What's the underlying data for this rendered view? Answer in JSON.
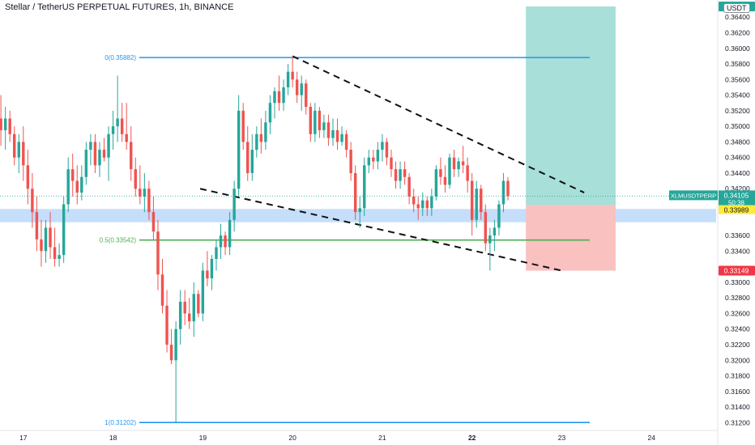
{
  "header": {
    "title": "Stellar / TetherUS PERPETUAL FUTURES, 1h, BINANCE",
    "currency_badge": "USDT"
  },
  "price_axis": {
    "ticks": [
      "0.36400",
      "0.36200",
      "0.36000",
      "0.35800",
      "0.35600",
      "0.35400",
      "0.35200",
      "0.35000",
      "0.34800",
      "0.34600",
      "0.34400",
      "0.34200",
      "0.33600",
      "0.33400",
      "0.33000",
      "0.32800",
      "0.32600",
      "0.32400",
      "0.32200",
      "0.32000",
      "0.31800",
      "0.31600",
      "0.31400",
      "0.31200"
    ]
  },
  "time_axis": {
    "ticks": [
      "17",
      "18",
      "19",
      "20",
      "21",
      "22",
      "23",
      "24"
    ]
  },
  "price_labels": {
    "symbol": "XLMUSDTPERP",
    "last_price": "0.34105",
    "countdown": "50:38",
    "target": "0.36537",
    "entry": "0.33989",
    "stop": "0.33149"
  },
  "fib_levels": [
    {
      "label": "0(0.35882)",
      "price": 0.35882,
      "color": "#2196f3"
    },
    {
      "label": "0.5(0.33542)",
      "price": 0.33542,
      "color": "#4caf50"
    },
    {
      "label": "1(0.31202)",
      "price": 0.31202,
      "color": "#2196f3"
    }
  ],
  "colors": {
    "up": "#26a69a",
    "down": "#ef5350",
    "profit_zone": "#a8dfd8",
    "loss_zone": "#f9c1c0",
    "support_band": "#c4defb",
    "symbol_label_bg": "#26a69a",
    "entry_label_bg": "#ffeb3b",
    "stop_label_bg": "#f23645"
  },
  "chart_data": {
    "type": "candlestick",
    "x_axis": {
      "unit": "day",
      "range": [
        16.74,
        24.72
      ],
      "ticks": [
        17,
        18,
        19,
        20,
        21,
        22,
        23,
        24
      ]
    },
    "y_axis": {
      "range": [
        0.311,
        0.3662
      ],
      "scale": "linear"
    },
    "trend_lines": [
      {
        "points": [
          [
            20.0,
            0.359
          ],
          [
            23.25,
            0.3415
          ]
        ],
        "style": "dashed"
      },
      {
        "points": [
          [
            18.97,
            0.342
          ],
          [
            23.0,
            0.33149
          ]
        ],
        "style": "dashed"
      }
    ],
    "position": {
      "type": "long",
      "x_range": [
        22.6,
        23.6
      ],
      "target": 0.36537,
      "entry": 0.33989,
      "stop": 0.33149
    },
    "support_zone": {
      "low": 0.3377,
      "high": 0.3394
    },
    "candles": [
      {
        "t": 16.75,
        "o": 0.351,
        "h": 0.354,
        "l": 0.3475,
        "c": 0.3495
      },
      {
        "t": 16.8,
        "o": 0.3495,
        "h": 0.3525,
        "l": 0.347,
        "c": 0.351
      },
      {
        "t": 16.85,
        "o": 0.351,
        "h": 0.352,
        "l": 0.348,
        "c": 0.349
      },
      {
        "t": 16.9,
        "o": 0.349,
        "h": 0.35,
        "l": 0.345,
        "c": 0.346
      },
      {
        "t": 16.95,
        "o": 0.346,
        "h": 0.349,
        "l": 0.344,
        "c": 0.348
      },
      {
        "t": 17.0,
        "o": 0.348,
        "h": 0.35,
        "l": 0.343,
        "c": 0.345
      },
      {
        "t": 17.05,
        "o": 0.345,
        "h": 0.347,
        "l": 0.34,
        "c": 0.342
      },
      {
        "t": 17.1,
        "o": 0.342,
        "h": 0.344,
        "l": 0.337,
        "c": 0.339
      },
      {
        "t": 17.15,
        "o": 0.339,
        "h": 0.341,
        "l": 0.334,
        "c": 0.3355
      },
      {
        "t": 17.2,
        "o": 0.3355,
        "h": 0.338,
        "l": 0.332,
        "c": 0.334
      },
      {
        "t": 17.25,
        "o": 0.334,
        "h": 0.338,
        "l": 0.3325,
        "c": 0.337
      },
      {
        "t": 17.3,
        "o": 0.337,
        "h": 0.339,
        "l": 0.333,
        "c": 0.3345
      },
      {
        "t": 17.35,
        "o": 0.3345,
        "h": 0.337,
        "l": 0.332,
        "c": 0.333
      },
      {
        "t": 17.4,
        "o": 0.333,
        "h": 0.335,
        "l": 0.332,
        "c": 0.3335
      },
      {
        "t": 17.45,
        "o": 0.3335,
        "h": 0.341,
        "l": 0.3325,
        "c": 0.34
      },
      {
        "t": 17.5,
        "o": 0.34,
        "h": 0.346,
        "l": 0.339,
        "c": 0.3445
      },
      {
        "t": 17.55,
        "o": 0.3445,
        "h": 0.3465,
        "l": 0.341,
        "c": 0.343
      },
      {
        "t": 17.6,
        "o": 0.343,
        "h": 0.345,
        "l": 0.34,
        "c": 0.3415
      },
      {
        "t": 17.65,
        "o": 0.3415,
        "h": 0.345,
        "l": 0.3405,
        "c": 0.3435
      },
      {
        "t": 17.7,
        "o": 0.3435,
        "h": 0.348,
        "l": 0.3425,
        "c": 0.347
      },
      {
        "t": 17.75,
        "o": 0.347,
        "h": 0.349,
        "l": 0.345,
        "c": 0.348
      },
      {
        "t": 17.8,
        "o": 0.348,
        "h": 0.349,
        "l": 0.344,
        "c": 0.345
      },
      {
        "t": 17.85,
        "o": 0.345,
        "h": 0.348,
        "l": 0.3435,
        "c": 0.347
      },
      {
        "t": 17.9,
        "o": 0.347,
        "h": 0.3485,
        "l": 0.3455,
        "c": 0.346
      },
      {
        "t": 17.95,
        "o": 0.346,
        "h": 0.35,
        "l": 0.343,
        "c": 0.349
      },
      {
        "t": 18.0,
        "o": 0.349,
        "h": 0.352,
        "l": 0.347,
        "c": 0.35
      },
      {
        "t": 18.05,
        "o": 0.35,
        "h": 0.3565,
        "l": 0.348,
        "c": 0.351
      },
      {
        "t": 18.1,
        "o": 0.351,
        "h": 0.353,
        "l": 0.348,
        "c": 0.349
      },
      {
        "t": 18.15,
        "o": 0.349,
        "h": 0.353,
        "l": 0.347,
        "c": 0.348
      },
      {
        "t": 18.2,
        "o": 0.348,
        "h": 0.35,
        "l": 0.343,
        "c": 0.3445
      },
      {
        "t": 18.25,
        "o": 0.3445,
        "h": 0.346,
        "l": 0.341,
        "c": 0.342
      },
      {
        "t": 18.3,
        "o": 0.342,
        "h": 0.345,
        "l": 0.34,
        "c": 0.341
      },
      {
        "t": 18.35,
        "o": 0.341,
        "h": 0.344,
        "l": 0.339,
        "c": 0.342
      },
      {
        "t": 18.4,
        "o": 0.342,
        "h": 0.343,
        "l": 0.338,
        "c": 0.339
      },
      {
        "t": 18.45,
        "o": 0.339,
        "h": 0.341,
        "l": 0.3355,
        "c": 0.3365
      },
      {
        "t": 18.5,
        "o": 0.3365,
        "h": 0.338,
        "l": 0.329,
        "c": 0.331
      },
      {
        "t": 18.55,
        "o": 0.331,
        "h": 0.333,
        "l": 0.326,
        "c": 0.327
      },
      {
        "t": 18.6,
        "o": 0.327,
        "h": 0.329,
        "l": 0.321,
        "c": 0.322
      },
      {
        "t": 18.65,
        "o": 0.322,
        "h": 0.324,
        "l": 0.3195,
        "c": 0.32
      },
      {
        "t": 18.7,
        "o": 0.32,
        "h": 0.325,
        "l": 0.312,
        "c": 0.324
      },
      {
        "t": 18.75,
        "o": 0.324,
        "h": 0.329,
        "l": 0.322,
        "c": 0.3275
      },
      {
        "t": 18.8,
        "o": 0.3275,
        "h": 0.329,
        "l": 0.3245,
        "c": 0.326
      },
      {
        "t": 18.85,
        "o": 0.326,
        "h": 0.328,
        "l": 0.324,
        "c": 0.325
      },
      {
        "t": 18.9,
        "o": 0.325,
        "h": 0.33,
        "l": 0.323,
        "c": 0.3285
      },
      {
        "t": 18.95,
        "o": 0.3285,
        "h": 0.329,
        "l": 0.3255,
        "c": 0.326
      },
      {
        "t": 19.0,
        "o": 0.326,
        "h": 0.3325,
        "l": 0.325,
        "c": 0.3315
      },
      {
        "t": 19.05,
        "o": 0.3315,
        "h": 0.334,
        "l": 0.3295,
        "c": 0.3305
      },
      {
        "t": 19.1,
        "o": 0.3305,
        "h": 0.3335,
        "l": 0.329,
        "c": 0.333
      },
      {
        "t": 19.15,
        "o": 0.333,
        "h": 0.3355,
        "l": 0.3315,
        "c": 0.3345
      },
      {
        "t": 19.2,
        "o": 0.3345,
        "h": 0.3375,
        "l": 0.333,
        "c": 0.336
      },
      {
        "t": 19.25,
        "o": 0.336,
        "h": 0.3365,
        "l": 0.3335,
        "c": 0.3345
      },
      {
        "t": 19.3,
        "o": 0.3345,
        "h": 0.339,
        "l": 0.3335,
        "c": 0.338
      },
      {
        "t": 19.35,
        "o": 0.338,
        "h": 0.343,
        "l": 0.3365,
        "c": 0.342
      },
      {
        "t": 19.4,
        "o": 0.342,
        "h": 0.354,
        "l": 0.341,
        "c": 0.352
      },
      {
        "t": 19.45,
        "o": 0.352,
        "h": 0.353,
        "l": 0.347,
        "c": 0.348
      },
      {
        "t": 19.5,
        "o": 0.348,
        "h": 0.35,
        "l": 0.343,
        "c": 0.344
      },
      {
        "t": 19.55,
        "o": 0.344,
        "h": 0.349,
        "l": 0.343,
        "c": 0.347
      },
      {
        "t": 19.6,
        "o": 0.347,
        "h": 0.35,
        "l": 0.346,
        "c": 0.349
      },
      {
        "t": 19.65,
        "o": 0.349,
        "h": 0.351,
        "l": 0.3465,
        "c": 0.348
      },
      {
        "t": 19.7,
        "o": 0.348,
        "h": 0.352,
        "l": 0.347,
        "c": 0.3505
      },
      {
        "t": 19.75,
        "o": 0.3505,
        "h": 0.354,
        "l": 0.349,
        "c": 0.353
      },
      {
        "t": 19.8,
        "o": 0.353,
        "h": 0.355,
        "l": 0.351,
        "c": 0.3545
      },
      {
        "t": 19.85,
        "o": 0.3545,
        "h": 0.3565,
        "l": 0.352,
        "c": 0.353
      },
      {
        "t": 19.9,
        "o": 0.353,
        "h": 0.356,
        "l": 0.352,
        "c": 0.355
      },
      {
        "t": 19.95,
        "o": 0.355,
        "h": 0.358,
        "l": 0.354,
        "c": 0.357
      },
      {
        "t": 20.0,
        "o": 0.357,
        "h": 0.359,
        "l": 0.355,
        "c": 0.356
      },
      {
        "t": 20.05,
        "o": 0.356,
        "h": 0.357,
        "l": 0.353,
        "c": 0.354
      },
      {
        "t": 20.1,
        "o": 0.354,
        "h": 0.3565,
        "l": 0.352,
        "c": 0.3555
      },
      {
        "t": 20.15,
        "o": 0.3555,
        "h": 0.356,
        "l": 0.3515,
        "c": 0.3525
      },
      {
        "t": 20.2,
        "o": 0.3525,
        "h": 0.353,
        "l": 0.348,
        "c": 0.349
      },
      {
        "t": 20.25,
        "o": 0.349,
        "h": 0.353,
        "l": 0.348,
        "c": 0.352
      },
      {
        "t": 20.3,
        "o": 0.352,
        "h": 0.3525,
        "l": 0.3485,
        "c": 0.3495
      },
      {
        "t": 20.35,
        "o": 0.3495,
        "h": 0.3515,
        "l": 0.3485,
        "c": 0.3505
      },
      {
        "t": 20.4,
        "o": 0.3505,
        "h": 0.3515,
        "l": 0.3475,
        "c": 0.3485
      },
      {
        "t": 20.45,
        "o": 0.3485,
        "h": 0.351,
        "l": 0.3475,
        "c": 0.3495
      },
      {
        "t": 20.5,
        "o": 0.3495,
        "h": 0.351,
        "l": 0.347,
        "c": 0.348
      },
      {
        "t": 20.55,
        "o": 0.348,
        "h": 0.35,
        "l": 0.3475,
        "c": 0.349
      },
      {
        "t": 20.6,
        "o": 0.349,
        "h": 0.3495,
        "l": 0.346,
        "c": 0.347
      },
      {
        "t": 20.65,
        "o": 0.347,
        "h": 0.348,
        "l": 0.343,
        "c": 0.344
      },
      {
        "t": 20.7,
        "o": 0.344,
        "h": 0.345,
        "l": 0.338,
        "c": 0.339
      },
      {
        "t": 20.75,
        "o": 0.339,
        "h": 0.341,
        "l": 0.337,
        "c": 0.3395
      },
      {
        "t": 20.8,
        "o": 0.3395,
        "h": 0.346,
        "l": 0.3385,
        "c": 0.345
      },
      {
        "t": 20.85,
        "o": 0.345,
        "h": 0.347,
        "l": 0.344,
        "c": 0.346
      },
      {
        "t": 20.9,
        "o": 0.346,
        "h": 0.347,
        "l": 0.3445,
        "c": 0.3455
      },
      {
        "t": 20.95,
        "o": 0.3455,
        "h": 0.348,
        "l": 0.3445,
        "c": 0.347
      },
      {
        "t": 21.0,
        "o": 0.347,
        "h": 0.349,
        "l": 0.3455,
        "c": 0.348
      },
      {
        "t": 21.05,
        "o": 0.348,
        "h": 0.3485,
        "l": 0.345,
        "c": 0.346
      },
      {
        "t": 21.1,
        "o": 0.346,
        "h": 0.347,
        "l": 0.3435,
        "c": 0.3445
      },
      {
        "t": 21.15,
        "o": 0.3445,
        "h": 0.3455,
        "l": 0.342,
        "c": 0.343
      },
      {
        "t": 21.2,
        "o": 0.343,
        "h": 0.3455,
        "l": 0.342,
        "c": 0.3445
      },
      {
        "t": 21.25,
        "o": 0.3445,
        "h": 0.3455,
        "l": 0.3425,
        "c": 0.3435
      },
      {
        "t": 21.3,
        "o": 0.3435,
        "h": 0.344,
        "l": 0.34,
        "c": 0.341
      },
      {
        "t": 21.35,
        "o": 0.341,
        "h": 0.342,
        "l": 0.339,
        "c": 0.34
      },
      {
        "t": 21.4,
        "o": 0.34,
        "h": 0.341,
        "l": 0.338,
        "c": 0.3395
      },
      {
        "t": 21.45,
        "o": 0.3395,
        "h": 0.3415,
        "l": 0.3385,
        "c": 0.3405
      },
      {
        "t": 21.5,
        "o": 0.3405,
        "h": 0.341,
        "l": 0.3385,
        "c": 0.3395
      },
      {
        "t": 21.55,
        "o": 0.3395,
        "h": 0.342,
        "l": 0.3385,
        "c": 0.341
      },
      {
        "t": 21.6,
        "o": 0.341,
        "h": 0.345,
        "l": 0.3405,
        "c": 0.3445
      },
      {
        "t": 21.65,
        "o": 0.3445,
        "h": 0.346,
        "l": 0.3425,
        "c": 0.3435
      },
      {
        "t": 21.7,
        "o": 0.3435,
        "h": 0.345,
        "l": 0.3415,
        "c": 0.3425
      },
      {
        "t": 21.75,
        "o": 0.3425,
        "h": 0.3465,
        "l": 0.342,
        "c": 0.346
      },
      {
        "t": 21.8,
        "o": 0.346,
        "h": 0.347,
        "l": 0.3435,
        "c": 0.3445
      },
      {
        "t": 21.85,
        "o": 0.3445,
        "h": 0.346,
        "l": 0.3435,
        "c": 0.3455
      },
      {
        "t": 21.9,
        "o": 0.3455,
        "h": 0.3475,
        "l": 0.344,
        "c": 0.345
      },
      {
        "t": 21.95,
        "o": 0.345,
        "h": 0.346,
        "l": 0.3415,
        "c": 0.343
      },
      {
        "t": 22.0,
        "o": 0.343,
        "h": 0.344,
        "l": 0.336,
        "c": 0.338
      },
      {
        "t": 22.05,
        "o": 0.338,
        "h": 0.343,
        "l": 0.337,
        "c": 0.342
      },
      {
        "t": 22.1,
        "o": 0.342,
        "h": 0.3425,
        "l": 0.338,
        "c": 0.339
      },
      {
        "t": 22.15,
        "o": 0.339,
        "h": 0.34,
        "l": 0.334,
        "c": 0.335
      },
      {
        "t": 22.2,
        "o": 0.335,
        "h": 0.337,
        "l": 0.3315,
        "c": 0.336
      },
      {
        "t": 22.25,
        "o": 0.336,
        "h": 0.338,
        "l": 0.334,
        "c": 0.337
      },
      {
        "t": 22.3,
        "o": 0.337,
        "h": 0.3405,
        "l": 0.336,
        "c": 0.34
      },
      {
        "t": 22.35,
        "o": 0.34,
        "h": 0.344,
        "l": 0.339,
        "c": 0.343
      },
      {
        "t": 22.4,
        "o": 0.343,
        "h": 0.3435,
        "l": 0.3405,
        "c": 0.34105
      }
    ]
  }
}
